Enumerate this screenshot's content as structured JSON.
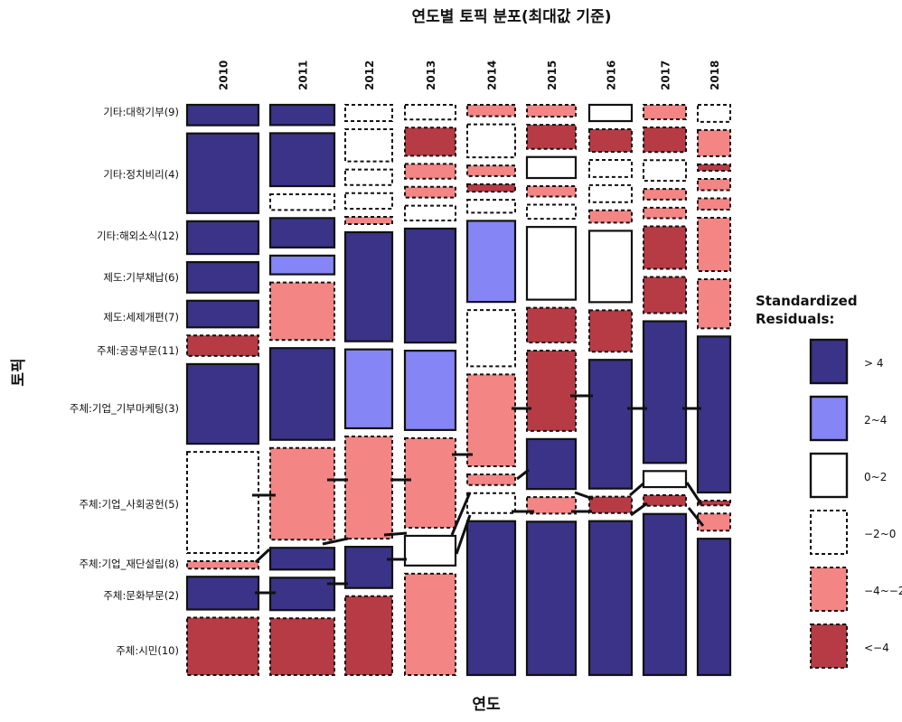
{
  "chart_data": {
    "type": "mosaic",
    "title": "연도별 토픽 분포(최대값 기준)",
    "xlabel": "연도",
    "ylabel": "토픽",
    "years": [
      "2010",
      "2011",
      "2012",
      "2013",
      "2014",
      "2015",
      "2016",
      "2017",
      "2018"
    ],
    "topics": [
      "기타:대학기부(9)",
      "기타:정치비리(4)",
      "기타:해외소식(12)",
      "제도:기부채납(6)",
      "제도:세제개편(7)",
      "주체:공공부문(11)",
      "주체:기업_기부마케팅(3)",
      "주체:기업_사회공헌(5)",
      "주체:기업_재단설립(8)",
      "주체:문화부문(2)",
      "주체:시민(10)"
    ],
    "residual_classes": [
      ">4",
      "2~4",
      "0~2",
      "-2~0",
      "-4~-2",
      "<-4"
    ],
    "legend": {
      "title_line1": "Standardized",
      "title_line2": "Residuals:",
      "position": "right",
      "entries": [
        {
          "label": "> 4",
          "fill": "#3a3388",
          "dashed": false
        },
        {
          "label": "2~4",
          "fill": "#8585f5",
          "dashed": false
        },
        {
          "label": "0~2",
          "fill": "#ffffff",
          "dashed": false
        },
        {
          "label": "−2~0",
          "fill": "#ffffff",
          "dashed": true
        },
        {
          "label": "−4~−2",
          "fill": "#f48585",
          "dashed": true
        },
        {
          "label": "<−4",
          "fill": "#b63b45",
          "dashed": true
        }
      ]
    },
    "cells": [
      {
        "year": "2010",
        "topic": "기타:대학기부(9)",
        "share": 0.029,
        "residual": ">4"
      },
      {
        "year": "2010",
        "topic": "기타:정치비리(4)",
        "share": 0.106,
        "residual": ">4"
      },
      {
        "year": "2010",
        "topic": "기타:해외소식(12)",
        "share": 0.045,
        "residual": ">4"
      },
      {
        "year": "2010",
        "topic": "제도:기부채납(6)",
        "share": 0.042,
        "residual": ">4"
      },
      {
        "year": "2010",
        "topic": "제도:세제개편(7)",
        "share": 0.037,
        "residual": ">4"
      },
      {
        "year": "2010",
        "topic": "주체:공공부문(11)",
        "share": 0.029,
        "residual": "<-4"
      },
      {
        "year": "2010",
        "topic": "주체:기업_기부마케팅(3)",
        "share": 0.106,
        "residual": ">4"
      },
      {
        "year": "2010",
        "topic": "주체:기업_사회공헌(5)",
        "share": 0.134,
        "residual": "-2~0"
      },
      {
        "year": "2010",
        "topic": "주체:기업_재단설립(8)",
        "share": 0.012,
        "residual": "-4~-2"
      },
      {
        "year": "2010",
        "topic": "주체:문화부문(2)",
        "share": 0.045,
        "residual": ">4"
      },
      {
        "year": "2010",
        "topic": "주체:시민(10)",
        "share": 0.077,
        "residual": "<-4"
      },
      {
        "year": "2011",
        "topic": "기타:대학기부(9)",
        "share": 0.029,
        "residual": ">4"
      },
      {
        "year": "2011",
        "topic": "기타:정치비리(4)",
        "share": 0.072,
        "residual": ">4"
      },
      {
        "year": "2011",
        "topic": "기타:정치비리(4)",
        "share": 0.023,
        "residual": "-2~0"
      },
      {
        "year": "2011",
        "topic": "기타:해외소식(12)",
        "share": 0.041,
        "residual": ">4"
      },
      {
        "year": "2011",
        "topic": "제도:기부채납(6)",
        "share": 0.027,
        "residual": "2~4"
      },
      {
        "year": "2011",
        "topic": "제도:세제개편(7)",
        "share": 0.078,
        "residual": "-4~-2"
      },
      {
        "year": "2011",
        "topic": "주체:기업_기부마케팅(3)",
        "share": 0.123,
        "residual": ">4"
      },
      {
        "year": "2011",
        "topic": "주체:기업_사회공헌(5)",
        "share": 0.123,
        "residual": "-4~-2"
      },
      {
        "year": "2011",
        "topic": "주체:기업_재단설립(8)",
        "share": 0.031,
        "residual": ">4"
      },
      {
        "year": "2011",
        "topic": "주체:문화부문(2)",
        "share": 0.045,
        "residual": ">4"
      },
      {
        "year": "2011",
        "topic": "주체:시민(10)",
        "share": 0.077,
        "residual": "<-4"
      },
      {
        "year": "2012",
        "topic": "기타:대학기부(9)",
        "share": 0.024,
        "residual": "-2~0"
      },
      {
        "year": "2012",
        "topic": "기타:정치비리(4)",
        "share": 0.045,
        "residual": "-2~0"
      },
      {
        "year": "2012",
        "topic": "기타:정치비리(4)",
        "share": 0.023,
        "residual": "-2~0"
      },
      {
        "year": "2012",
        "topic": "기타:해외소식(12)",
        "share": 0.023,
        "residual": "-2~0"
      },
      {
        "year": "2012",
        "topic": "기타:해외소식(12)",
        "share": 0.012,
        "residual": "-4~-2"
      },
      {
        "year": "2012",
        "topic": "제도:기부채납(6)",
        "share": 0.147,
        "residual": ">4"
      },
      {
        "year": "2012",
        "topic": "주체:기업_기부마케팅(3)",
        "share": 0.107,
        "residual": "2~4"
      },
      {
        "year": "2012",
        "topic": "주체:기업_사회공헌(5)",
        "share": 0.138,
        "residual": "-4~-2"
      },
      {
        "year": "2012",
        "topic": "주체:기업_재단설립(8)",
        "share": 0.057,
        "residual": ">4"
      },
      {
        "year": "2012",
        "topic": "주체:시민(10)",
        "share": 0.107,
        "residual": "<-4"
      },
      {
        "year": "2013",
        "topic": "기타:대학기부(9)",
        "share": 0.021,
        "residual": "-2~0"
      },
      {
        "year": "2013",
        "topic": "기타:정치비리(4)",
        "share": 0.038,
        "residual": "<-4"
      },
      {
        "year": "2013",
        "topic": "기타:정치비리(4)",
        "share": 0.021,
        "residual": "-4~-2"
      },
      {
        "year": "2013",
        "topic": "기타:정치비리(4)",
        "share": 0.016,
        "residual": "-4~-2"
      },
      {
        "year": "2013",
        "topic": "기타:해외소식(12)",
        "share": 0.021,
        "residual": "-2~0"
      },
      {
        "year": "2013",
        "topic": "제도:기부채납(6)",
        "share": 0.147,
        "residual": ">4"
      },
      {
        "year": "2013",
        "topic": "주체:기업_기부마케팅(3)",
        "share": 0.103,
        "residual": "2~4"
      },
      {
        "year": "2013",
        "topic": "주체:기업_사회공헌(5)",
        "share": 0.116,
        "residual": "-4~-2"
      },
      {
        "year": "2013",
        "topic": "주체:기업_재단설립(8)",
        "share": 0.04,
        "residual": "0~2"
      },
      {
        "year": "2013",
        "topic": "주체:시민(10)",
        "share": 0.131,
        "residual": "-4~-2"
      },
      {
        "year": "2014",
        "topic": "기타:대학기부(9)",
        "share": 0.017,
        "residual": "-4~-2"
      },
      {
        "year": "2014",
        "topic": "기타:정치비리(4)",
        "share": 0.045,
        "residual": "-2~0"
      },
      {
        "year": "2014",
        "topic": "기타:정치비리(4)",
        "share": 0.016,
        "residual": "-4~-2"
      },
      {
        "year": "2014",
        "topic": "기타:정치비리(4)",
        "share": 0.012,
        "residual": "<-4"
      },
      {
        "year": "2014",
        "topic": "기타:해외소식(12)",
        "share": 0.019,
        "residual": "-2~0"
      },
      {
        "year": "2014",
        "topic": "제도:기부채납(6)",
        "share": 0.107,
        "residual": "2~4"
      },
      {
        "year": "2014",
        "topic": "주체:공공부문(11)",
        "share": 0.075,
        "residual": "-2~0"
      },
      {
        "year": "2014",
        "topic": "주체:기업_기부마케팅(3)",
        "share": 0.121,
        "residual": "-4~-2"
      },
      {
        "year": "2014",
        "topic": "주체:기업_사회공헌(5)",
        "share": 0.016,
        "residual": "-4~-2"
      },
      {
        "year": "2014",
        "topic": "주체:기업_사회공헌(5)",
        "share": 0.028,
        "residual": "-2~0"
      },
      {
        "year": "2014",
        "topic": "주체:시민(10)",
        "share": 0.201,
        "residual": ">4"
      },
      {
        "year": "2015",
        "topic": "기타:대학기부(9)",
        "share": 0.018,
        "residual": "-4~-2"
      },
      {
        "year": "2015",
        "topic": "기타:정치비리(4)",
        "share": 0.034,
        "residual": "<-4"
      },
      {
        "year": "2015",
        "topic": "기타:정치비리(4)",
        "share": 0.03,
        "residual": "0~2"
      },
      {
        "year": "2015",
        "topic": "기타:정치비리(4)",
        "share": 0.016,
        "residual": "-4~-2"
      },
      {
        "year": "2015",
        "topic": "기타:해외소식(12)",
        "share": 0.021,
        "residual": "-2~0"
      },
      {
        "year": "2015",
        "topic": "제도:기부채납(6)",
        "share": 0.098,
        "residual": "0~2"
      },
      {
        "year": "2015",
        "topic": "주체:공공부문(11)",
        "share": 0.048,
        "residual": "<-4"
      },
      {
        "year": "2015",
        "topic": "주체:기업_기부마케팅(3)",
        "share": 0.108,
        "residual": "<-4"
      },
      {
        "year": "2015",
        "topic": "주체:기업_사회공헌(5)",
        "share": 0.068,
        "residual": ">4"
      },
      {
        "year": "2015",
        "topic": "주체:기업_사회공헌(5)",
        "share": 0.024,
        "residual": "-4~-2"
      },
      {
        "year": "2015",
        "topic": "주체:시민(10)",
        "share": 0.204,
        "residual": ">4"
      },
      {
        "year": "2016",
        "topic": "기타:대학기부(9)",
        "share": 0.023,
        "residual": "0~2"
      },
      {
        "year": "2016",
        "topic": "기타:정치비리(4)",
        "share": 0.031,
        "residual": "<-4"
      },
      {
        "year": "2016",
        "topic": "기타:정치비리(4)",
        "share": 0.024,
        "residual": "-2~0"
      },
      {
        "year": "2016",
        "topic": "기타:정치비리(4)",
        "share": 0.024,
        "residual": "-2~0"
      },
      {
        "year": "2016",
        "topic": "기타:해외소식(12)",
        "share": 0.018,
        "residual": "-4~-2"
      },
      {
        "year": "2016",
        "topic": "제도:기부채납(6)",
        "share": 0.093,
        "residual": "0~2"
      },
      {
        "year": "2016",
        "topic": "주체:공공부문(11)",
        "share": 0.055,
        "residual": "<-4"
      },
      {
        "year": "2016",
        "topic": "주체:기업_기부마케팅(3)",
        "share": 0.166,
        "residual": ">4"
      },
      {
        "year": "2016",
        "topic": "주체:기업_사회공헌(5)",
        "share": 0.023,
        "residual": "<-4"
      },
      {
        "year": "2016",
        "topic": "주체:시민(10)",
        "share": 0.198,
        "residual": ">4"
      },
      {
        "year": "2017",
        "topic": "기타:대학기부(9)",
        "share": 0.021,
        "residual": "-4~-2"
      },
      {
        "year": "2017",
        "topic": "기타:정치비리(4)",
        "share": 0.034,
        "residual": "<-4"
      },
      {
        "year": "2017",
        "topic": "기타:정치비리(4)",
        "share": 0.029,
        "residual": "-2~0"
      },
      {
        "year": "2017",
        "topic": "기타:정치비리(4)",
        "share": 0.016,
        "residual": "-4~-2"
      },
      {
        "year": "2017",
        "topic": "기타:해외소식(12)",
        "share": 0.016,
        "residual": "-4~-2"
      },
      {
        "year": "2017",
        "topic": "기타:해외소식(12)",
        "share": 0.057,
        "residual": "<-4"
      },
      {
        "year": "2017",
        "topic": "제도:세제개편(7)",
        "share": 0.049,
        "residual": "<-4"
      },
      {
        "year": "2017",
        "topic": "주체:기업_기부마케팅(3)",
        "share": 0.185,
        "residual": ">4"
      },
      {
        "year": "2017",
        "topic": "주체:기업_사회공헌(5)",
        "share": 0.023,
        "residual": "0~2"
      },
      {
        "year": "2017",
        "topic": "주체:기업_사회공헌(5)",
        "share": 0.016,
        "residual": "<-4"
      },
      {
        "year": "2017",
        "topic": "주체:시민(10)",
        "share": 0.21,
        "residual": ">4"
      },
      {
        "year": "2018",
        "topic": "기타:대학기부(9)",
        "share": 0.023,
        "residual": "-2~0"
      },
      {
        "year": "2018",
        "topic": "기타:정치비리(4)",
        "share": 0.034,
        "residual": "-4~-2"
      },
      {
        "year": "2018",
        "topic": "기타:정치비리(4)",
        "share": 0.01,
        "residual": "<-4"
      },
      {
        "year": "2018",
        "topic": "기타:정치비리(4)",
        "share": 0.016,
        "residual": "-4~-2"
      },
      {
        "year": "2018",
        "topic": "기타:해외소식(12)",
        "share": 0.016,
        "residual": "-4~-2"
      },
      {
        "year": "2018",
        "topic": "기타:해외소식(12)",
        "share": 0.067,
        "residual": "-4~-2"
      },
      {
        "year": "2018",
        "topic": "제도:세제개편(7)",
        "share": 0.062,
        "residual": "-4~-2"
      },
      {
        "year": "2018",
        "topic": "주체:기업_기부마케팅(3)",
        "share": 0.192,
        "residual": ">4"
      },
      {
        "year": "2018",
        "topic": "주체:기업_사회공헌(5)",
        "share": 0.008,
        "residual": "<-4"
      },
      {
        "year": "2018",
        "topic": "주체:기업_사회공헌(5)",
        "share": 0.023,
        "residual": "-4~-2"
      },
      {
        "year": "2018",
        "topic": "주체:시민(10)",
        "share": 0.168,
        "residual": ">4"
      }
    ],
    "colors": {
      ">4": "#3a3388",
      "2~4": "#8585f5",
      "0~2": "#ffffff",
      "-2~0": "#ffffff",
      "-4~-2": "#f48585",
      "<-4": "#b63b45"
    }
  }
}
